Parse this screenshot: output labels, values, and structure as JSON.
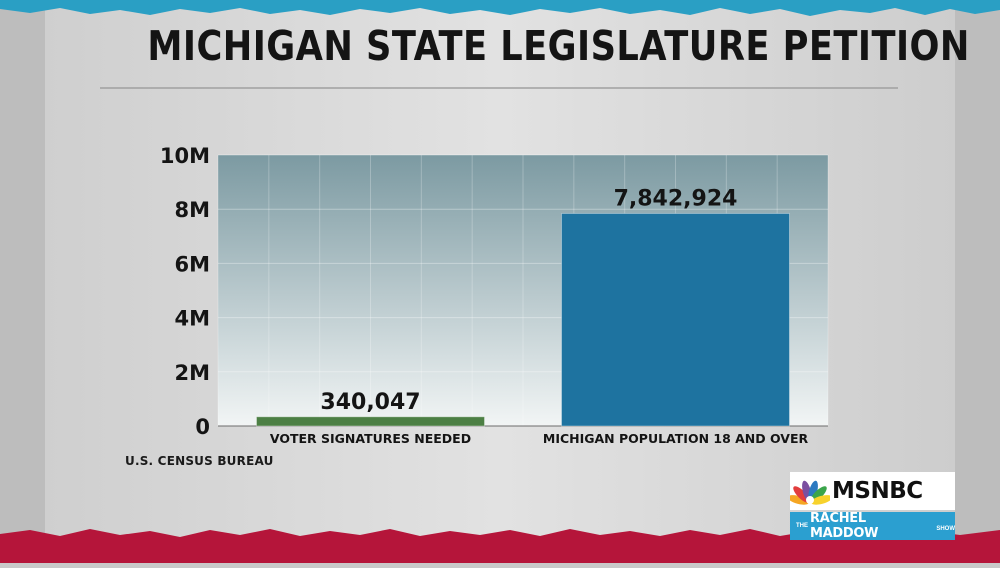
{
  "header": {
    "title": "MICHIGAN STATE LEGISLATURE PETITION"
  },
  "footer": {
    "source": "U.S. CENSUS BUREAU"
  },
  "branding": {
    "network": "MSNBC",
    "show_prefix": "THE",
    "show_name": "RACHEL MADDOW",
    "show_suffix": "SHOW"
  },
  "colors": {
    "background": "#d7d7d7",
    "plot_top": "#7c9aa2",
    "plot_bottom": "#f2f5f5",
    "green_bar": "#4c7f44",
    "blue_bar": "#1e73a0",
    "torn_edge_top": "#2a9fc4",
    "torn_edge_bottom": "#b5153a"
  },
  "chart_data": {
    "type": "bar",
    "title": "MICHIGAN STATE LEGISLATURE PETITION",
    "xlabel": "",
    "ylabel": "",
    "categories": [
      "VOTER SIGNATURES NEEDED",
      "MICHIGAN POPULATION 18 AND OVER"
    ],
    "values": [
      340047,
      7842924
    ],
    "value_labels": [
      "340,047",
      "7,842,924"
    ],
    "bar_colors": [
      "#4c7f44",
      "#1e73a0"
    ],
    "ylim": [
      0,
      10000000
    ],
    "yticks": [
      0,
      2000000,
      4000000,
      6000000,
      8000000,
      10000000
    ],
    "ytick_labels": [
      "0",
      "2M",
      "4M",
      "6M",
      "8M",
      "10M"
    ],
    "grid": true,
    "legend": "none"
  }
}
